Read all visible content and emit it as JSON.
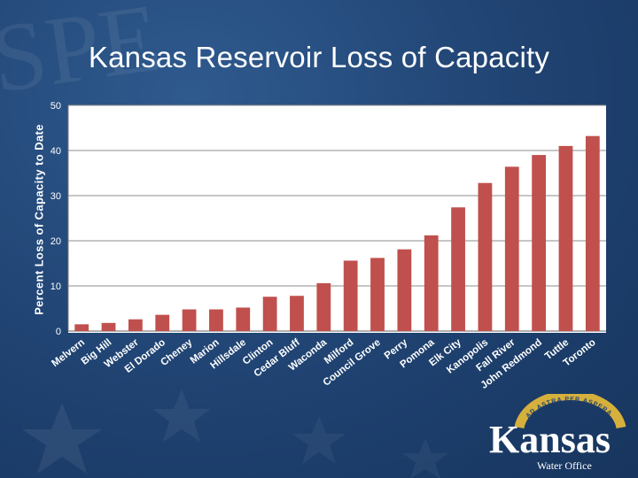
{
  "chart_data": {
    "type": "bar",
    "title": "Kansas Reservoir Loss of Capacity",
    "xlabel": "",
    "ylabel": "Percent Loss of Capacity to Date",
    "ylim": [
      0,
      50
    ],
    "yticks": [
      0,
      10,
      20,
      30,
      40,
      50
    ],
    "grid": true,
    "bar_color": "#c0504d",
    "categories": [
      "Melvern",
      "Big Hill",
      "Webster",
      "El Dorado",
      "Cheney",
      "Marion",
      "Hillsdale",
      "Clinton",
      "Cedar Bluff",
      "Waconda",
      "Milford",
      "Council Grove",
      "Perry",
      "Pomona",
      "Elk City",
      "Kanopolis",
      "Fall River",
      "John Redmond",
      "Tuttle",
      "Toronto"
    ],
    "values": [
      1.5,
      1.8,
      2.6,
      3.6,
      4.8,
      4.8,
      5.2,
      7.6,
      7.8,
      10.6,
      15.6,
      16.2,
      18.1,
      21.2,
      27.4,
      32.8,
      36.4,
      39.0,
      41.0,
      43.2
    ]
  },
  "logo": {
    "name": "Kansas",
    "subtitle": "Water Office",
    "motto": "AD ASTRA PER ASPERA"
  }
}
